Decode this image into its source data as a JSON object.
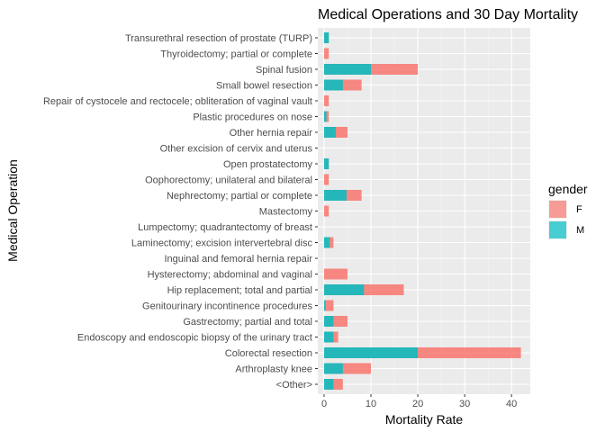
{
  "chart_data": {
    "type": "bar",
    "orientation": "horizontal",
    "stacked": true,
    "title": "Medical Operations and 30 Day Mortality",
    "xlabel": "Mortality Rate",
    "ylabel": "Medical Operation",
    "xlim": [
      0,
      44
    ],
    "xticks": [
      0,
      10,
      20,
      30,
      40
    ],
    "grid": true,
    "legend": {
      "title": "gender",
      "placement": "right"
    },
    "categories": [
      "Transurethral resection of prostate (TURP)",
      "Thyroidectomy; partial or complete",
      "Spinal fusion",
      "Small bowel resection",
      "Repair of cystocele and rectocele; obliteration of vaginal vault",
      "Plastic procedures on nose",
      "Other hernia repair",
      "Other excision of cervix and uterus",
      "Open prostatectomy",
      "Oophorectomy; unilateral and bilateral",
      "Nephrectomy; partial or complete",
      "Mastectomy",
      "Lumpectomy; quadrantectomy of breast",
      "Laminectomy; excision intervertebral disc",
      "Inguinal and femoral hernia repair",
      "Hysterectomy; abdominal and vaginal",
      "Hip replacement; total and partial",
      "Genitourinary incontinence procedures",
      "Gastrectomy; partial and total",
      "Endoscopy and endoscopic biopsy of the urinary tract",
      "Colorectal resection",
      "Arthroplasty knee",
      "<Other>"
    ],
    "series": [
      {
        "name": "M",
        "color": "#00BFC4",
        "values": [
          1,
          0,
          10,
          4,
          0,
          0.5,
          2.5,
          0,
          1,
          0,
          4.8,
          0,
          0,
          1.2,
          0,
          0,
          8.5,
          0.3,
          2,
          2,
          20,
          4,
          2
        ]
      },
      {
        "name": "F",
        "color": "#F8766D",
        "values": [
          0,
          1,
          10,
          4,
          1,
          0.5,
          2.5,
          0,
          0,
          1,
          3.2,
          1,
          0,
          0.8,
          0,
          5,
          8.5,
          1.7,
          3,
          1,
          22,
          6,
          2
        ]
      }
    ]
  }
}
